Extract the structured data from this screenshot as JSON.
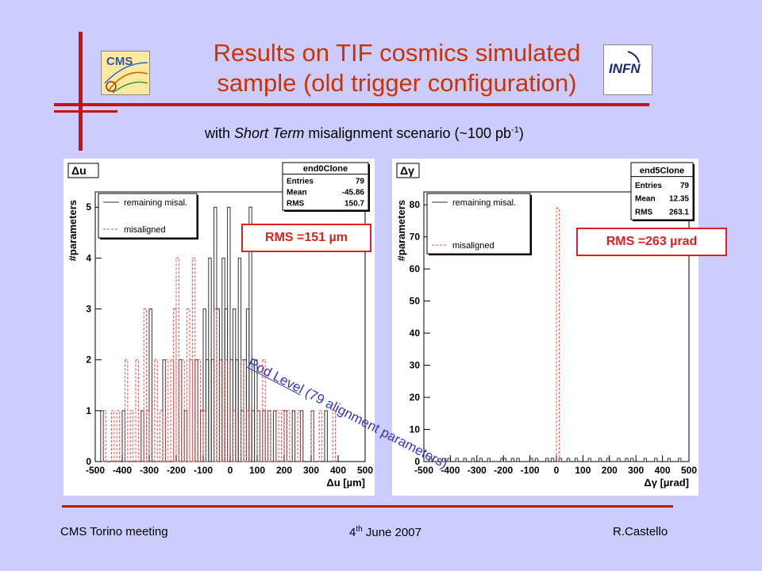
{
  "slide": {
    "title_line1": "Results on TIF cosmics simulated",
    "title_line2": "sample (old trigger configuration)",
    "subtitle_pre": "with ",
    "subtitle_italic": "Short Term",
    "subtitle_post": " misalignment scenario (~100 pb",
    "subtitle_sup": "-1",
    "subtitle_end": ")",
    "logo_left_text": "CMS",
    "logo_right_text": "INFN",
    "rms_left": "RMS =151 µm",
    "rms_right": "RMS =263 µrad",
    "rod_level_link": "Rod Level",
    "rod_level_rest": " (79 alignment parameters)",
    "footer_left": "CMS Torino meeting",
    "footer_center_pre": "4",
    "footer_center_sup": "th",
    "footer_center_post": " June 2007",
    "footer_right": "R.Castello",
    "colors": {
      "background": "#ccccff",
      "title": "#cc3300",
      "accent_red": "#cc1111",
      "rod_text": "#3333cc",
      "misaligned": "#ff4444"
    }
  },
  "chart_data": [
    {
      "type": "histogram",
      "panel_label": "Δu",
      "stats": {
        "name": "end0Clone",
        "entries_label": "Entries",
        "entries": "79",
        "mean_label": "Mean",
        "mean": "-45.86",
        "rms_label": "RMS",
        "rms": "150.7"
      },
      "xlabel": "Δu [µm]",
      "ylabel": "#parameters",
      "xlim": [
        -500,
        500
      ],
      "ylim": [
        0,
        5.3
      ],
      "xticks": [
        -500,
        -400,
        -300,
        -200,
        -100,
        0,
        100,
        200,
        300,
        400,
        500
      ],
      "yticks": [
        0,
        1,
        2,
        3,
        4,
        5
      ],
      "legend_position": "top-left",
      "series": [
        {
          "name": "remaining misal.",
          "style": "solid",
          "color": "#333333",
          "bin_width": 10,
          "bins": [
            [
              -480,
              1
            ],
            [
              -400,
              1
            ],
            [
              -330,
              1
            ],
            [
              -300,
              3
            ],
            [
              -250,
              2
            ],
            [
              -190,
              2
            ],
            [
              -170,
              1
            ],
            [
              -130,
              2
            ],
            [
              -110,
              1
            ],
            [
              -100,
              3
            ],
            [
              -90,
              2
            ],
            [
              -80,
              4
            ],
            [
              -70,
              2
            ],
            [
              -60,
              5
            ],
            [
              -50,
              3
            ],
            [
              -40,
              2
            ],
            [
              -30,
              4
            ],
            [
              -20,
              3
            ],
            [
              -10,
              5
            ],
            [
              0,
              2
            ],
            [
              10,
              3
            ],
            [
              20,
              2
            ],
            [
              30,
              4
            ],
            [
              40,
              1
            ],
            [
              50,
              2
            ],
            [
              60,
              3
            ],
            [
              70,
              5
            ],
            [
              80,
              1
            ],
            [
              90,
              2
            ],
            [
              100,
              1
            ],
            [
              120,
              1
            ],
            [
              140,
              1
            ],
            [
              160,
              1
            ],
            [
              200,
              1
            ],
            [
              230,
              1
            ],
            [
              260,
              1
            ],
            [
              300,
              1
            ],
            [
              350,
              1
            ]
          ]
        },
        {
          "name": "misaligned",
          "style": "dashed",
          "color": "#ff4444",
          "bin_width": 10,
          "bins": [
            [
              -470,
              1
            ],
            [
              -440,
              1
            ],
            [
              -420,
              1
            ],
            [
              -390,
              2
            ],
            [
              -370,
              1
            ],
            [
              -350,
              2
            ],
            [
              -320,
              3
            ],
            [
              -310,
              1
            ],
            [
              -280,
              2
            ],
            [
              -260,
              1
            ],
            [
              -240,
              2
            ],
            [
              -220,
              2
            ],
            [
              -210,
              3
            ],
            [
              -200,
              4
            ],
            [
              -180,
              2
            ],
            [
              -160,
              3
            ],
            [
              -150,
              2
            ],
            [
              -140,
              4
            ],
            [
              -120,
              2
            ],
            [
              -100,
              1
            ],
            [
              -60,
              3
            ],
            [
              -40,
              2
            ],
            [
              -20,
              2
            ],
            [
              10,
              1
            ],
            [
              40,
              2
            ],
            [
              60,
              1
            ],
            [
              100,
              1
            ],
            [
              120,
              2
            ],
            [
              140,
              1
            ],
            [
              170,
              1
            ],
            [
              190,
              1
            ],
            [
              210,
              1
            ],
            [
              250,
              1
            ],
            [
              300,
              1
            ],
            [
              330,
              1
            ],
            [
              380,
              1
            ]
          ]
        }
      ]
    },
    {
      "type": "histogram",
      "panel_label": "Δγ",
      "stats": {
        "name": "end5Clone",
        "entries_label": "Entries",
        "entries": "79",
        "mean_label": "Mean",
        "mean": "12.35",
        "rms_label": "RMS",
        "rms": "263.1"
      },
      "xlabel": "Δγ [µrad]",
      "ylabel": "#parameters",
      "xlim": [
        -500,
        500
      ],
      "ylim": [
        0,
        84
      ],
      "xticks": [
        -500,
        -400,
        -300,
        -200,
        -100,
        0,
        100,
        200,
        300,
        400,
        500
      ],
      "yticks": [
        0,
        10,
        20,
        30,
        40,
        50,
        60,
        70,
        80
      ],
      "legend_position": "top-left",
      "series": [
        {
          "name": "remaining misal.",
          "style": "solid",
          "color": "#333333",
          "bin_width": 10,
          "bins": [
            [
              -480,
              1
            ],
            [
              -430,
              1
            ],
            [
              -410,
              1
            ],
            [
              -380,
              1
            ],
            [
              -350,
              1
            ],
            [
              -320,
              1
            ],
            [
              -290,
              1
            ],
            [
              -260,
              1
            ],
            [
              -210,
              1
            ],
            [
              -200,
              1
            ],
            [
              -170,
              1
            ],
            [
              -150,
              1
            ],
            [
              -100,
              1
            ],
            [
              -80,
              1
            ],
            [
              -40,
              1
            ],
            [
              -20,
              1
            ],
            [
              10,
              1
            ],
            [
              40,
              1
            ],
            [
              70,
              1
            ],
            [
              120,
              1
            ],
            [
              160,
              1
            ],
            [
              190,
              1
            ],
            [
              230,
              1
            ],
            [
              260,
              1
            ],
            [
              280,
              1
            ],
            [
              330,
              1
            ],
            [
              370,
              1
            ],
            [
              420,
              1
            ],
            [
              460,
              1
            ]
          ]
        },
        {
          "name": "misaligned",
          "style": "dashed",
          "color": "#ff4444",
          "bin_width": 10,
          "bins": [
            [
              0,
              79
            ]
          ]
        }
      ]
    }
  ]
}
